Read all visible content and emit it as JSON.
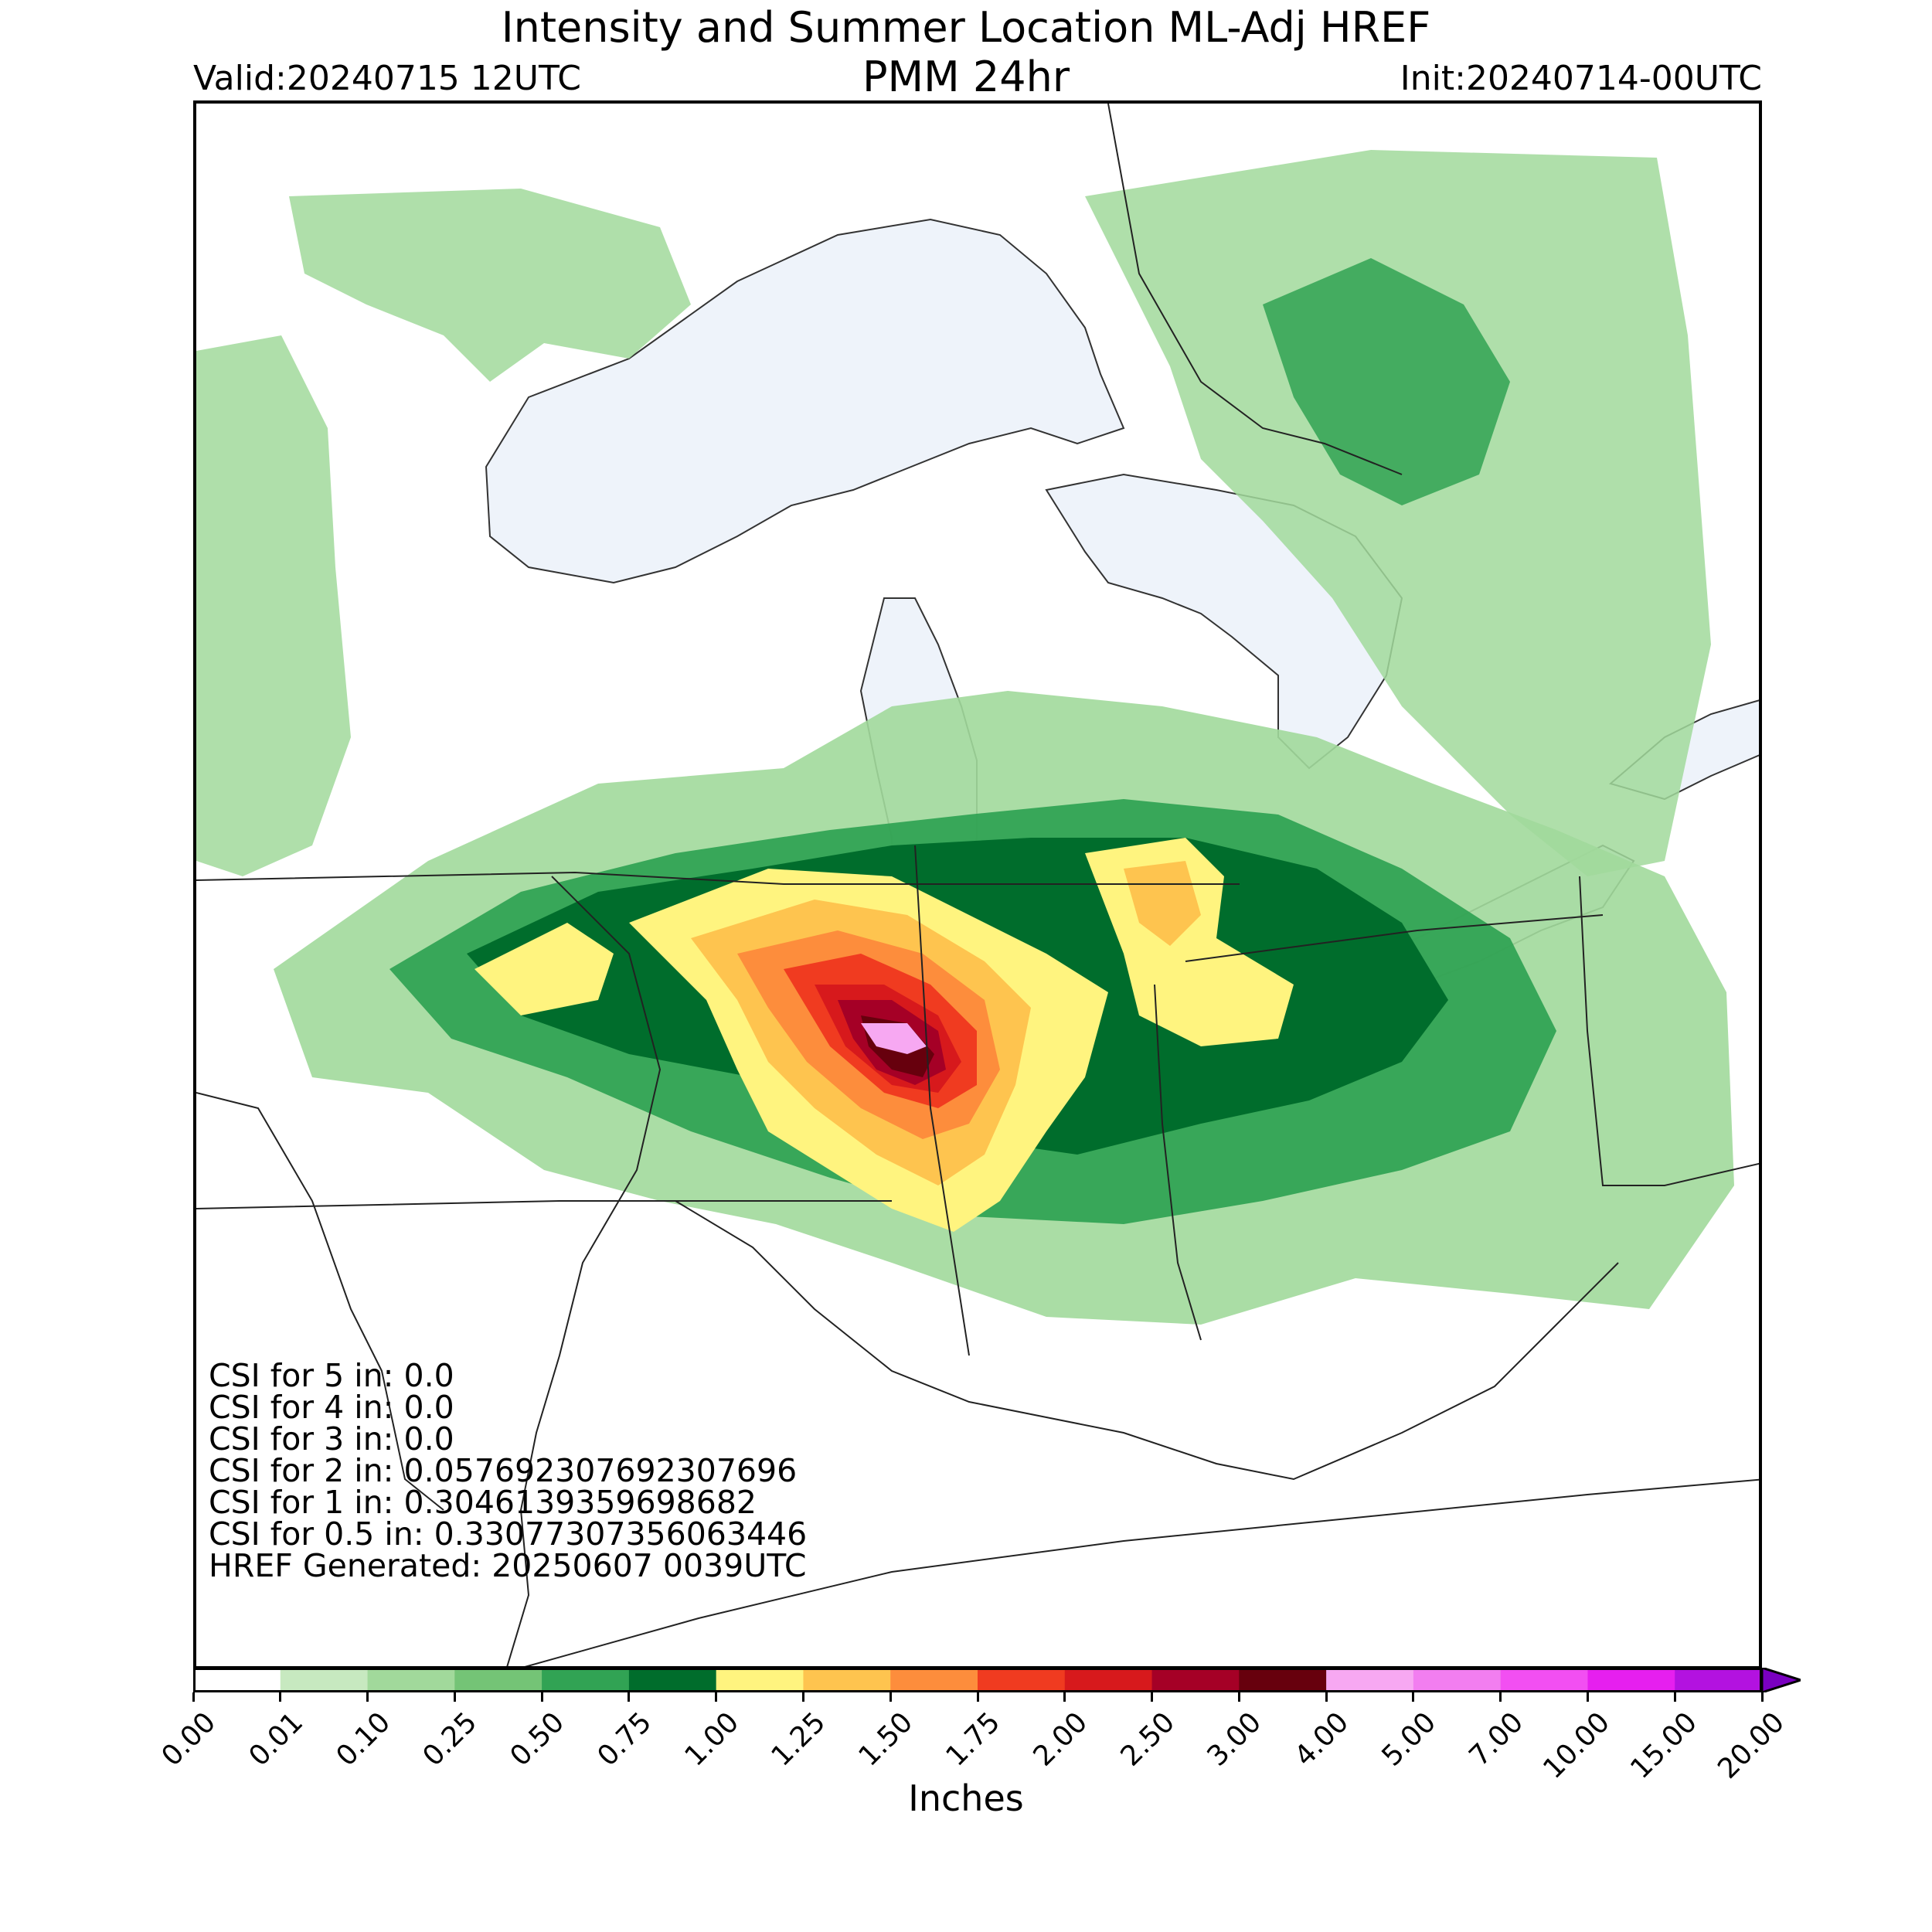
{
  "title_line1": "Intensity and Summer Location ML-Adj HREF",
  "title_line2": "PMM 24hr",
  "valid": "Valid:20240715 12UTC",
  "init": "Init:20240714-00UTC",
  "stats": [
    "CSI for 5 in: 0.0",
    "CSI for 4 in: 0.0",
    "CSI for 3 in: 0.0",
    "CSI for 2 in: 0.057692307692307696",
    "CSI for 1 in: 0.3046139359698682",
    "CSI for 0.5 in: 0.33077307356063446",
    "HREF Generated: 20250607 0039UTC"
  ],
  "colorbar": {
    "label": "Inches",
    "levels": [
      "0.00",
      "0.01",
      "0.10",
      "0.25",
      "0.50",
      "0.75",
      "1.00",
      "1.25",
      "1.50",
      "1.75",
      "2.00",
      "2.50",
      "3.00",
      "4.00",
      "5.00",
      "7.00",
      "10.00",
      "15.00",
      "20.00"
    ],
    "colors": [
      "#ffffff",
      "#c7e9c0",
      "#a1d99b",
      "#74c476",
      "#31a354",
      "#006d2c",
      "#fff47f",
      "#fec44f",
      "#fd8d3c",
      "#f03b20",
      "#d7191c",
      "#a50026",
      "#67000d",
      "#f7a8f2",
      "#f27ef0",
      "#f24ff2",
      "#e61fef",
      "#b312e0",
      "#7a00c0"
    ]
  },
  "map_colors": {
    "water": "#eef3fa",
    "border": "#222222"
  }
}
